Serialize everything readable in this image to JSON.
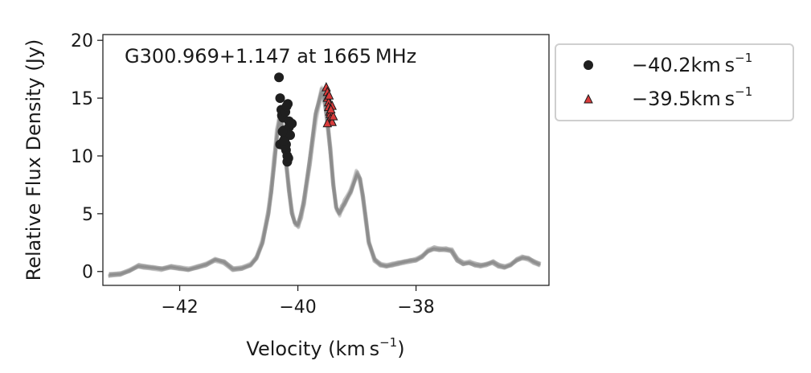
{
  "chart_data": {
    "type": "scatter",
    "title": "G300.969+1.147 at 1665 MHz",
    "xlabel": "Velocity (km s",
    "xlabel_sup": "−1",
    "xlabel_close": ")",
    "ylabel": "Relative Flux Density (Jy)",
    "xlim": [
      -43.3,
      -35.75
    ],
    "ylim": [
      -1.2,
      20.5
    ],
    "xticks": [
      -42,
      -40,
      -38
    ],
    "xtick_labels": [
      "−42",
      "−40",
      "−38"
    ],
    "yticks": [
      0,
      5,
      10,
      15,
      20
    ],
    "ytick_labels": [
      "0",
      "5",
      "10",
      "15",
      "20"
    ],
    "grid": false,
    "legend_position": "outside-right",
    "spectrum": {
      "name": "",
      "color": "#8a8a8a",
      "x": [
        -43.2,
        -43.0,
        -42.85,
        -42.7,
        -42.6,
        -42.45,
        -42.3,
        -42.15,
        -42.0,
        -41.85,
        -41.7,
        -41.55,
        -41.4,
        -41.25,
        -41.1,
        -40.95,
        -40.8,
        -40.7,
        -40.6,
        -40.5,
        -40.45,
        -40.4,
        -40.35,
        -40.3,
        -40.25,
        -40.2,
        -40.15,
        -40.1,
        -40.05,
        -40.0,
        -39.95,
        -39.9,
        -39.8,
        -39.7,
        -39.6,
        -39.55,
        -39.5,
        -39.45,
        -39.4,
        -39.35,
        -39.3,
        -39.25,
        -39.2,
        -39.1,
        -39.0,
        -38.95,
        -38.9,
        -38.85,
        -38.8,
        -38.7,
        -38.6,
        -38.5,
        -38.4,
        -38.3,
        -38.2,
        -38.1,
        -38.0,
        -37.9,
        -37.8,
        -37.7,
        -37.6,
        -37.5,
        -37.4,
        -37.3,
        -37.2,
        -37.1,
        -37.0,
        -36.9,
        -36.8,
        -36.7,
        -36.6,
        -36.5,
        -36.4,
        -36.3,
        -36.2,
        -36.1,
        -36.0,
        -35.9
      ],
      "y": [
        -0.3,
        -0.2,
        0.1,
        0.5,
        0.4,
        0.3,
        0.2,
        0.4,
        0.3,
        0.2,
        0.4,
        0.6,
        1.0,
        0.8,
        0.2,
        0.3,
        0.6,
        1.2,
        2.5,
        5.0,
        7.0,
        9.5,
        12.0,
        13.5,
        12.0,
        9.5,
        7.0,
        5.0,
        4.2,
        4.0,
        4.8,
        6.0,
        9.5,
        13.5,
        15.5,
        15.0,
        13.0,
        10.5,
        7.5,
        5.5,
        5.0,
        5.5,
        6.0,
        7.0,
        8.5,
        8.0,
        6.5,
        4.5,
        2.5,
        1.0,
        0.6,
        0.5,
        0.6,
        0.7,
        0.8,
        0.9,
        1.0,
        1.3,
        1.8,
        2.0,
        1.9,
        1.9,
        1.8,
        1.0,
        0.7,
        0.8,
        0.6,
        0.5,
        0.6,
        0.8,
        0.5,
        0.4,
        0.6,
        1.0,
        1.2,
        1.1,
        0.8,
        0.6
      ]
    },
    "series": [
      {
        "name": "−40.2km s",
        "name_sup": "−1",
        "marker": "circle",
        "color": "#1f1f1f",
        "x": [
          -40.32,
          -40.3,
          -40.28,
          -40.27,
          -40.25,
          -40.24,
          -40.22,
          -40.22,
          -40.2,
          -40.2,
          -40.18,
          -40.18,
          -40.17,
          -40.15,
          -40.15,
          -40.13,
          -40.1,
          -40.3,
          -40.26,
          -40.21,
          -40.19,
          -40.16,
          -40.22,
          -40.24
        ],
        "y": [
          16.8,
          15.0,
          14.0,
          13.5,
          13.3,
          12.2,
          12.0,
          11.5,
          11.0,
          10.5,
          10.0,
          9.5,
          14.5,
          13.0,
          12.5,
          11.8,
          12.8,
          11.0,
          12.1,
          13.8,
          14.3,
          9.8,
          10.8,
          11.3
        ]
      },
      {
        "name": "−39.5km s",
        "name_sup": "−1",
        "marker": "triangle",
        "color": "#d93b3b",
        "x": [
          -39.52,
          -39.5,
          -39.5,
          -39.48,
          -39.48,
          -39.46,
          -39.45,
          -39.45,
          -39.43,
          -39.42,
          -39.42,
          -39.4,
          -39.5,
          -39.47,
          -39.44
        ],
        "y": [
          15.9,
          15.5,
          15.0,
          14.6,
          14.2,
          13.8,
          13.6,
          13.2,
          13.0,
          14.3,
          12.9,
          13.4,
          12.8,
          15.2,
          14.0
        ]
      }
    ]
  }
}
